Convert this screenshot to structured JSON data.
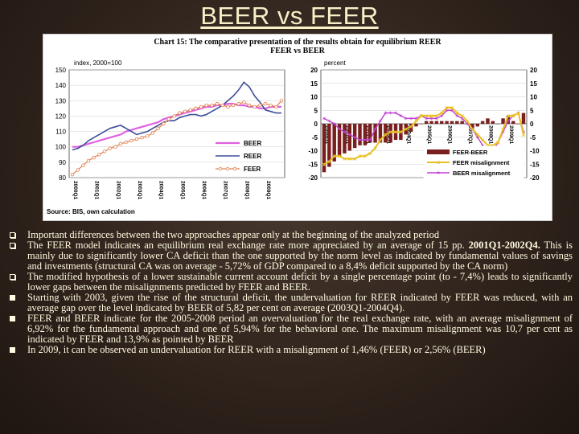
{
  "slide": {
    "title": "BEER vs FEER"
  },
  "chart": {
    "heading": "Chart 15: The comparative presentation of the results obtain for equilibrium REER",
    "subheading": "FEER vs BEER",
    "source": "Source: BIS, own calculation",
    "colors": {
      "beer": "#e060e0",
      "reer": "#3b4e9a",
      "feer": "#e08050",
      "bar": "#7a1f1f",
      "feer_mis": "#e8c020",
      "beer_mis": "#c040d0"
    }
  },
  "chart_data": [
    {
      "type": "line",
      "title": "",
      "ylabel": "index, 2000=100",
      "ylim": [
        80,
        150
      ],
      "yticks": [
        "150",
        "140",
        "130",
        "120",
        "110",
        "100",
        "90",
        "80"
      ],
      "xticks": [
        "2000Q1",
        "2001Q1",
        "2002Q1",
        "2003Q1",
        "2004Q1",
        "2005Q1",
        "2006Q1",
        "2007Q1",
        "2008Q1",
        "2009Q1"
      ],
      "legend": [
        "BEER",
        "REER",
        "FEER"
      ],
      "series": [
        {
          "name": "BEER",
          "values": [
            100,
            100,
            101,
            102,
            103,
            104,
            105,
            106,
            107,
            108,
            110,
            111,
            112,
            113,
            114,
            115,
            116,
            118,
            119,
            120,
            121,
            122,
            123,
            124,
            125,
            126,
            126,
            127,
            127,
            128,
            128,
            127,
            127,
            126,
            126,
            125,
            125,
            126,
            126,
            126
          ]
        },
        {
          "name": "REER",
          "values": [
            98,
            99,
            101,
            104,
            106,
            108,
            110,
            112,
            113,
            114,
            112,
            110,
            108,
            109,
            110,
            112,
            114,
            116,
            117,
            117,
            119,
            120,
            121,
            121,
            120,
            121,
            123,
            125,
            127,
            130,
            133,
            137,
            142,
            139,
            133,
            129,
            124,
            123,
            122,
            122
          ]
        },
        {
          "name": "FEER",
          "values": [
            82,
            85,
            88,
            91,
            93,
            95,
            97,
            99,
            100,
            102,
            103,
            104,
            105,
            106,
            107,
            109,
            112,
            115,
            118,
            120,
            122,
            123,
            124,
            125,
            126,
            127,
            127,
            128,
            127,
            126,
            127,
            128,
            129,
            127,
            126,
            127,
            128,
            127,
            126,
            130
          ]
        }
      ]
    },
    {
      "type": "bar",
      "title": "",
      "ylabel": "percent",
      "ylim": [
        -20,
        20
      ],
      "yticks": [
        "20",
        "15",
        "10",
        "5",
        "0",
        "-5",
        "-10",
        "-15",
        "-20"
      ],
      "xticks": [
        "2000Q1",
        "2001Q1",
        "2002Q1",
        "2003Q1",
        "2004Q1",
        "2005Q1",
        "2006Q1",
        "2007Q1",
        "2008Q1",
        "2009Q1"
      ],
      "legend": [
        "FEER-BEER",
        "FEER misalignment",
        "BEER misalignment"
      ],
      "series": [
        {
          "name": "FEER-BEER",
          "values": [
            -18,
            -16,
            -14,
            -12,
            -11,
            -10,
            -9,
            -8,
            -8,
            -7,
            -7,
            -7,
            -7,
            -7,
            -6,
            -6,
            -4,
            -3,
            -1,
            0,
            1,
            1,
            1,
            1,
            1,
            1,
            1,
            1,
            0,
            -2,
            -1,
            1,
            2,
            1,
            0,
            2,
            3,
            1,
            0,
            4
          ]
        },
        {
          "name": "FEER misalignment",
          "values": [
            -15,
            -14,
            -12,
            -12,
            -13,
            -13,
            -13,
            -12,
            -12,
            -11,
            -9,
            -6,
            -4,
            -3,
            -3,
            -3,
            -2,
            -1,
            1,
            3,
            3,
            3,
            3,
            4,
            6,
            6,
            4,
            3,
            1,
            -2,
            -4,
            -6,
            -8,
            -8,
            -7,
            -2,
            3,
            3,
            4,
            -4
          ]
        },
        {
          "name": "BEER misalignment",
          "values": [
            2,
            1,
            0,
            -2,
            -3,
            -4,
            -5,
            -6,
            -6,
            -6,
            -2,
            1,
            4,
            4,
            4,
            3,
            2,
            2,
            2,
            3,
            2,
            2,
            2,
            3,
            5,
            5,
            3,
            2,
            0,
            -2,
            -5,
            -8,
            -13,
            -10,
            -7,
            -3,
            1,
            3,
            4,
            -3
          ]
        }
      ]
    }
  ],
  "bullets": [
    {
      "style": "outline",
      "text": "Important differences between the two approaches appear only at the beginning of the analyzed period"
    },
    {
      "style": "outline",
      "text": "The FEER model indicates an equilibrium real exchange rate more appreciated by an average of 15 pp.",
      "highlight": "2001Q1-2002Q4.",
      "rest": " This is mainly due to significantly lower CA deficit than the one supported by the norm level as indicated by fundamental values of savings and investments (structural CA was on average - 5,72% of GDP compared to a 8,4% deficit supported by the CA norm)"
    },
    {
      "style": "outline",
      "text": "The modified hypothesis of a lower sustainable current account deficit by a single percentage point (to - 7,4%) leads to significantly lower gaps between the misalignments predicted by FEER and BEER."
    },
    {
      "style": "filled",
      "text": "Starting with 2003, given the rise of the structural deficit, the undervaluation for REER indicated by FEER was reduced, with an average gap over the level indicated by BEER of 5,82 per cent on average (2003Q1-2004Q4)."
    },
    {
      "style": "filled",
      "text": "FEER and BEER indicate for the 2005-2008 period an overvaluation for the real exchange rate, with an average misalignment of 6,92% for the fundamental approach and one of 5,94% for the behavioral one. The maximum misalignment was 10,7 per cent as indicated by FEER and 13,9% as pointed by BEER"
    },
    {
      "style": "filled",
      "text": "In 2009, it can be observed an undervaluation for REER with a misalignment of 1,46% (FEER) or 2,56% (BEER)"
    }
  ]
}
